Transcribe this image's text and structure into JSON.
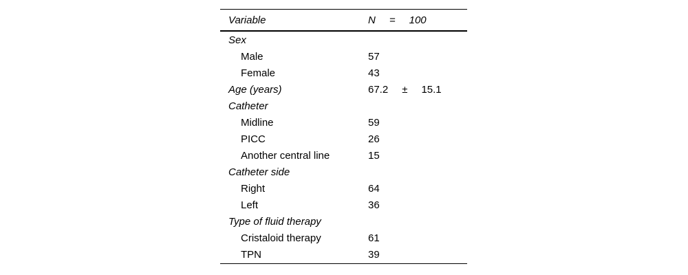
{
  "window": {
    "background": "#ffffff"
  },
  "colors": {
    "text": "#000000",
    "rule": "#000000",
    "background": "#ffffff"
  },
  "table": {
    "header": {
      "variable_label": "Variable",
      "n_label": "N",
      "equals_symbol": "=",
      "n_value": "100"
    },
    "rows": [
      {
        "label": "Sex",
        "level": "category",
        "value": "",
        "symbol": "",
        "value2": ""
      },
      {
        "label": "Male",
        "level": "item",
        "value": "57",
        "symbol": "",
        "value2": ""
      },
      {
        "label": "Female",
        "level": "item",
        "value": "43",
        "symbol": "",
        "value2": ""
      },
      {
        "label": "Age (years)",
        "level": "category",
        "value": "67.2",
        "symbol": "±",
        "value2": "15.1"
      },
      {
        "label": "Catheter",
        "level": "category",
        "value": "",
        "symbol": "",
        "value2": ""
      },
      {
        "label": "Midline",
        "level": "item",
        "value": "59",
        "symbol": "",
        "value2": ""
      },
      {
        "label": "PICC",
        "level": "item",
        "value": "26",
        "symbol": "",
        "value2": ""
      },
      {
        "label": "Another central line",
        "level": "item",
        "value": "15",
        "symbol": "",
        "value2": ""
      },
      {
        "label": "Catheter side",
        "level": "category",
        "value": "",
        "symbol": "",
        "value2": ""
      },
      {
        "label": "Right",
        "level": "item",
        "value": "64",
        "symbol": "",
        "value2": ""
      },
      {
        "label": "Left",
        "level": "item",
        "value": "36",
        "symbol": "",
        "value2": ""
      },
      {
        "label": "Type of fluid therapy",
        "level": "category",
        "value": "",
        "symbol": "",
        "value2": ""
      },
      {
        "label": "Cristaloid therapy",
        "level": "item",
        "value": "61",
        "symbol": "",
        "value2": ""
      },
      {
        "label": "TPN",
        "level": "item",
        "value": "39",
        "symbol": "",
        "value2": ""
      }
    ]
  }
}
